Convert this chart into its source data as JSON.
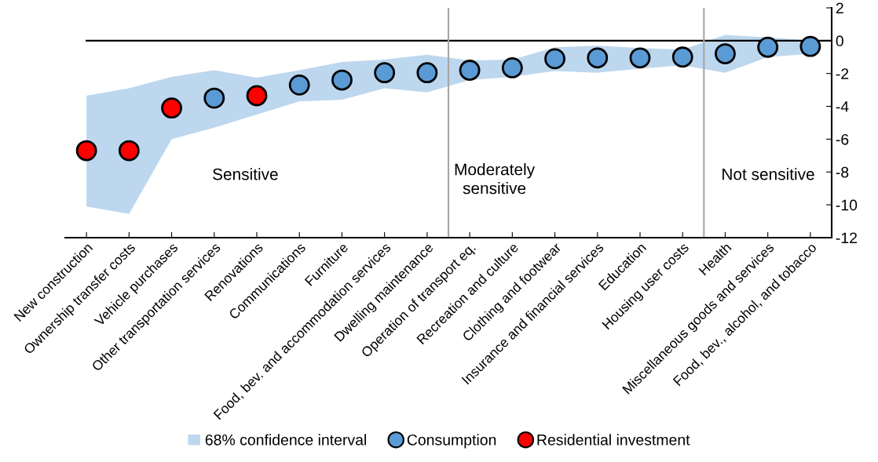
{
  "chart_data": {
    "type": "scatter",
    "categories": [
      "New construction",
      "Ownership transfer costs",
      "Vehicle purchases",
      "Other transportation services",
      "Renovations",
      "Communications",
      "Furniture",
      "Food, bev. and accommodation services",
      "Dwelling maintenance",
      "Operation of transport eq.",
      "Recreation and culture",
      "Clothing and footwear",
      "Insurance and financial services",
      "Education",
      "Housing user costs",
      "Health",
      "Miscellaneous goods and services",
      "Food, bev., alcohol, and tobacco"
    ],
    "series": [
      {
        "name": "68% confidence interval",
        "type": "area",
        "color": "#bdd7ee",
        "values": [
          null,
          null,
          null,
          null,
          null,
          null,
          null,
          null,
          null,
          null,
          null,
          null,
          null,
          null,
          null,
          null,
          null,
          null
        ],
        "lower": [
          -10.1,
          -10.55,
          -6.0,
          -5.3,
          -4.5,
          -3.7,
          -3.6,
          -2.9,
          -3.15,
          -2.4,
          -2.2,
          -1.85,
          -1.95,
          -1.7,
          -1.5,
          -1.95,
          -1.0,
          -0.8
        ],
        "upper": [
          -3.35,
          -2.9,
          -2.2,
          -1.8,
          -2.25,
          -1.8,
          -1.3,
          -1.15,
          -0.85,
          -1.2,
          -1.15,
          -0.4,
          -0.3,
          -0.45,
          -0.55,
          0.35,
          0.2,
          0.0
        ]
      },
      {
        "name": "Consumption",
        "color": "#5b9bd5",
        "values": [
          null,
          null,
          null,
          -3.5,
          null,
          -2.7,
          -2.4,
          -1.95,
          -1.95,
          -1.8,
          -1.65,
          -1.1,
          -1.05,
          -1.05,
          -1.0,
          -0.8,
          -0.4,
          -0.35
        ]
      },
      {
        "name": "Residential investment",
        "color": "#ff0000",
        "values": [
          -6.7,
          -6.7,
          -4.1,
          null,
          -3.35,
          null,
          null,
          null,
          null,
          null,
          null,
          null,
          null,
          null,
          null,
          null,
          null,
          null
        ]
      }
    ],
    "ylim": [
      -12,
      2
    ],
    "yticks": [
      -12,
      -10,
      -8,
      -6,
      -4,
      -2,
      0,
      2
    ],
    "marker": "circle",
    "legend": "bottom",
    "ref_lines": [
      {
        "axis": "y",
        "value": 0,
        "color": "#000000"
      }
    ],
    "annotations": [
      "Sensitive",
      "Moderately\nsensitive",
      "Not sensitive"
    ]
  }
}
